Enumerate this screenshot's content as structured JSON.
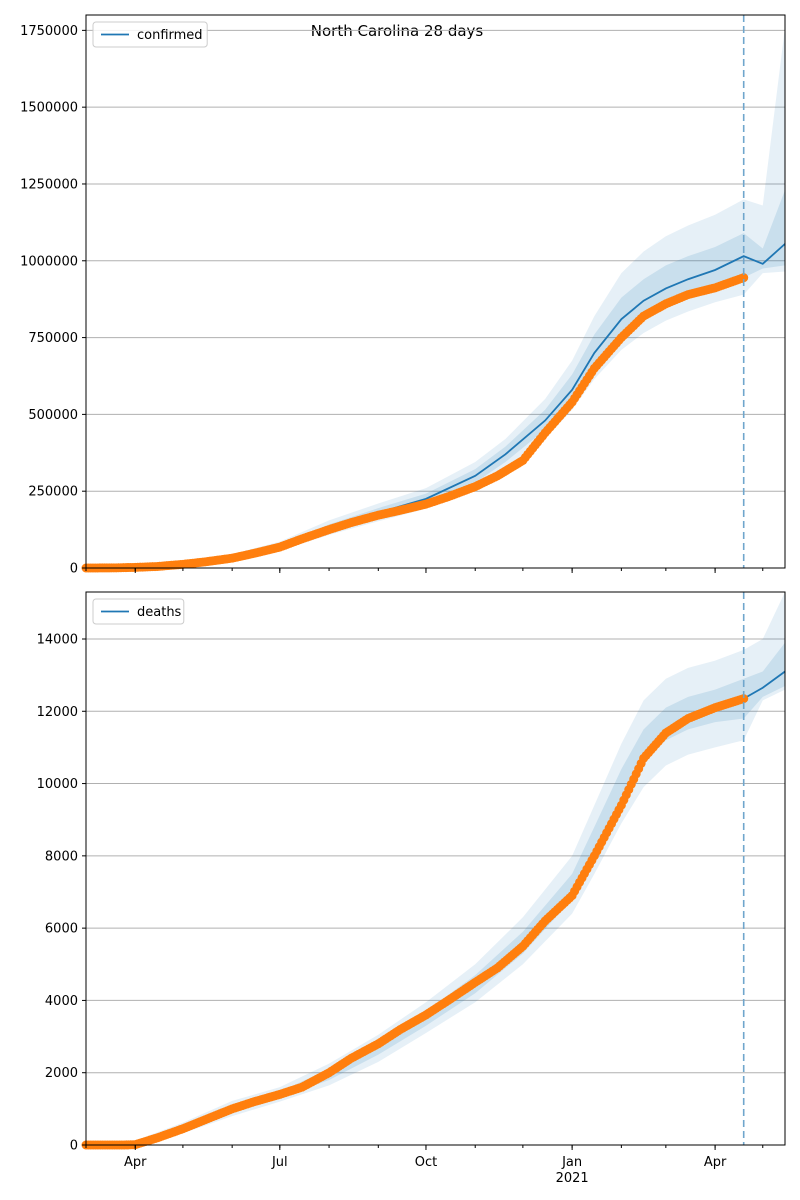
{
  "figure": {
    "suptitle": "North Carolina 28 days"
  },
  "colors": {
    "model": "#1f77b4",
    "observed": "#ff7f0e",
    "band": "#1f77b4",
    "grid": "#b0b0b0",
    "forecast_line": "#6fa6cc"
  },
  "chart_data": [
    {
      "type": "line",
      "id": "confirmed",
      "legend": [
        "confirmed"
      ],
      "legend_position": "top-left",
      "grid": "horizontal",
      "xlim": [
        "2020-03-01",
        "2021-05-15"
      ],
      "xticks": [
        {
          "date": "2020-04-01",
          "label": "Apr"
        },
        {
          "date": "2020-07-01",
          "label": "Jul"
        },
        {
          "date": "2020-10-01",
          "label": "Oct"
        },
        {
          "date": "2021-01-01",
          "label": "Jan",
          "sublabel": "2021"
        },
        {
          "date": "2021-04-01",
          "label": "Apr"
        }
      ],
      "forecast_start": "2021-04-19",
      "ylim": [
        0,
        1800000
      ],
      "yticks": [
        0,
        250000,
        500000,
        750000,
        1000000,
        1250000,
        1500000,
        1750000
      ],
      "ytick_labels": [
        "0",
        "250000",
        "500000",
        "750000",
        "1000000",
        "1250000",
        "1500000",
        "1750000"
      ],
      "model": {
        "x": [
          "2020-03-01",
          "2020-04-01",
          "2020-05-01",
          "2020-06-01",
          "2020-07-01",
          "2020-08-01",
          "2020-09-01",
          "2020-10-01",
          "2020-11-01",
          "2020-11-20",
          "2020-12-15",
          "2021-01-01",
          "2021-01-15",
          "2021-02-01",
          "2021-02-15",
          "2021-03-01",
          "2021-03-15",
          "2021-04-01",
          "2021-04-19",
          "2021-05-01",
          "2021-05-15"
        ],
        "y": [
          0,
          2000,
          15000,
          35000,
          70000,
          130000,
          180000,
          225000,
          300000,
          370000,
          480000,
          580000,
          700000,
          810000,
          870000,
          910000,
          940000,
          970000,
          1015000,
          990000,
          1055000
        ]
      },
      "bands": [
        {
          "name": "inner",
          "x": [
            "2020-03-01",
            "2020-04-01",
            "2020-05-01",
            "2020-06-01",
            "2020-07-01",
            "2020-08-01",
            "2020-09-01",
            "2020-10-01",
            "2020-11-01",
            "2020-11-20",
            "2020-12-15",
            "2021-01-01",
            "2021-01-15",
            "2021-02-01",
            "2021-02-15",
            "2021-03-01",
            "2021-03-15",
            "2021-04-01",
            "2021-04-19",
            "2021-05-01",
            "2021-05-15"
          ],
          "lower": [
            0,
            1500,
            12000,
            30000,
            62000,
            118000,
            165000,
            208000,
            278000,
            345000,
            450000,
            550000,
            660000,
            760000,
            815000,
            855000,
            885000,
            915000,
            945000,
            975000,
            985000
          ],
          "upper": [
            0,
            2500,
            18000,
            40000,
            78000,
            142000,
            195000,
            242000,
            322000,
            395000,
            515000,
            630000,
            760000,
            880000,
            940000,
            985000,
            1015000,
            1045000,
            1090000,
            1040000,
            1230000
          ]
        },
        {
          "name": "outer",
          "x": [
            "2020-03-01",
            "2020-04-01",
            "2020-05-01",
            "2020-06-01",
            "2020-07-01",
            "2020-08-01",
            "2020-09-01",
            "2020-10-01",
            "2020-11-01",
            "2020-11-20",
            "2020-12-15",
            "2021-01-01",
            "2021-01-15",
            "2021-02-01",
            "2021-02-15",
            "2021-03-01",
            "2021-03-15",
            "2021-04-01",
            "2021-04-19",
            "2021-05-01",
            "2021-05-15"
          ],
          "lower": [
            0,
            1000,
            9000,
            26000,
            56000,
            108000,
            152000,
            193000,
            258000,
            320000,
            420000,
            515000,
            615000,
            710000,
            765000,
            805000,
            835000,
            865000,
            890000,
            960000,
            965000
          ],
          "upper": [
            0,
            3000,
            21000,
            45000,
            86000,
            155000,
            210000,
            260000,
            345000,
            420000,
            550000,
            675000,
            820000,
            960000,
            1030000,
            1080000,
            1115000,
            1150000,
            1200000,
            1180000,
            1760000
          ]
        }
      ],
      "observed": {
        "x": [
          "2020-03-01",
          "2020-03-20",
          "2020-04-01",
          "2020-04-15",
          "2020-05-01",
          "2020-05-15",
          "2020-06-01",
          "2020-06-15",
          "2020-07-01",
          "2020-07-15",
          "2020-08-01",
          "2020-08-15",
          "2020-09-01",
          "2020-09-15",
          "2020-10-01",
          "2020-10-15",
          "2020-11-01",
          "2020-11-15",
          "2020-12-01",
          "2020-12-15",
          "2021-01-01",
          "2021-01-15",
          "2021-02-01",
          "2021-02-15",
          "2021-03-01",
          "2021-03-15",
          "2021-04-01",
          "2021-04-19"
        ],
        "y": [
          0,
          500,
          2000,
          5000,
          12000,
          20000,
          32000,
          48000,
          68000,
          95000,
          125000,
          148000,
          172000,
          188000,
          208000,
          232000,
          265000,
          300000,
          350000,
          440000,
          540000,
          650000,
          750000,
          820000,
          860000,
          890000,
          912000,
          945000
        ]
      }
    },
    {
      "type": "line",
      "id": "deaths",
      "legend": [
        "deaths"
      ],
      "legend_position": "top-left",
      "grid": "horizontal",
      "xlim": [
        "2020-03-01",
        "2021-05-15"
      ],
      "xticks": [
        {
          "date": "2020-04-01",
          "label": "Apr"
        },
        {
          "date": "2020-07-01",
          "label": "Jul"
        },
        {
          "date": "2020-10-01",
          "label": "Oct"
        },
        {
          "date": "2021-01-01",
          "label": "Jan",
          "sublabel": "2021"
        },
        {
          "date": "2021-04-01",
          "label": "Apr"
        }
      ],
      "forecast_start": "2021-04-19",
      "ylim": [
        0,
        15300
      ],
      "yticks": [
        0,
        2000,
        4000,
        6000,
        8000,
        10000,
        12000,
        14000
      ],
      "ytick_labels": [
        "0",
        "2000",
        "4000",
        "6000",
        "8000",
        "10000",
        "12000",
        "14000"
      ],
      "model": {
        "x": [
          "2021-04-19",
          "2021-05-01",
          "2021-05-15"
        ],
        "y": [
          12350,
          12650,
          13100
        ]
      },
      "bands": [
        {
          "name": "inner",
          "x": [
            "2020-03-01",
            "2020-04-01",
            "2020-05-01",
            "2020-06-01",
            "2020-07-01",
            "2020-08-01",
            "2020-09-01",
            "2020-10-01",
            "2020-11-01",
            "2020-12-01",
            "2021-01-01",
            "2021-01-15",
            "2021-02-01",
            "2021-02-15",
            "2021-03-01",
            "2021-03-15",
            "2021-04-01",
            "2021-04-19",
            "2021-05-01",
            "2021-05-15"
          ],
          "lower": [
            0,
            0,
            400,
            900,
            1300,
            1800,
            2500,
            3300,
            4200,
            5300,
            6800,
            8000,
            9500,
            10600,
            11200,
            11500,
            11700,
            11800,
            12400,
            12700
          ],
          "upper": [
            0,
            80,
            520,
            1100,
            1480,
            2100,
            2850,
            3700,
            4700,
            5900,
            7500,
            8800,
            10400,
            11500,
            12100,
            12400,
            12600,
            12900,
            13100,
            13900
          ]
        },
        {
          "name": "outer",
          "x": [
            "2020-03-01",
            "2020-04-01",
            "2020-05-01",
            "2020-06-01",
            "2020-07-01",
            "2020-08-01",
            "2020-09-01",
            "2020-10-01",
            "2020-11-01",
            "2020-12-01",
            "2021-01-01",
            "2021-01-15",
            "2021-02-01",
            "2021-02-15",
            "2021-03-01",
            "2021-03-15",
            "2021-04-01",
            "2021-04-19",
            "2021-05-01",
            "2021-05-15"
          ],
          "lower": [
            0,
            0,
            320,
            800,
            1200,
            1650,
            2300,
            3100,
            3950,
            5000,
            6400,
            7500,
            8900,
            9900,
            10500,
            10800,
            11000,
            11200,
            12300,
            12600
          ],
          "upper": [
            0,
            120,
            620,
            1220,
            1600,
            2250,
            3050,
            3950,
            5000,
            6300,
            8000,
            9400,
            11100,
            12300,
            12900,
            13200,
            13400,
            13700,
            14000,
            15300
          ]
        }
      ],
      "observed": {
        "x": [
          "2020-03-01",
          "2020-03-25",
          "2020-04-01",
          "2020-04-15",
          "2020-05-01",
          "2020-05-15",
          "2020-06-01",
          "2020-06-15",
          "2020-07-01",
          "2020-07-15",
          "2020-08-01",
          "2020-08-15",
          "2020-09-01",
          "2020-09-15",
          "2020-10-01",
          "2020-10-15",
          "2020-11-01",
          "2020-11-15",
          "2020-12-01",
          "2020-12-15",
          "2021-01-01",
          "2021-01-15",
          "2021-02-01",
          "2021-02-15",
          "2021-03-01",
          "2021-03-15",
          "2021-04-01",
          "2021-04-19"
        ],
        "y": [
          0,
          0,
          10,
          200,
          450,
          700,
          1000,
          1200,
          1400,
          1600,
          2000,
          2400,
          2800,
          3200,
          3600,
          4000,
          4500,
          4900,
          5500,
          6200,
          6900,
          8000,
          9400,
          10700,
          11400,
          11800,
          12100,
          12350
        ]
      }
    }
  ]
}
